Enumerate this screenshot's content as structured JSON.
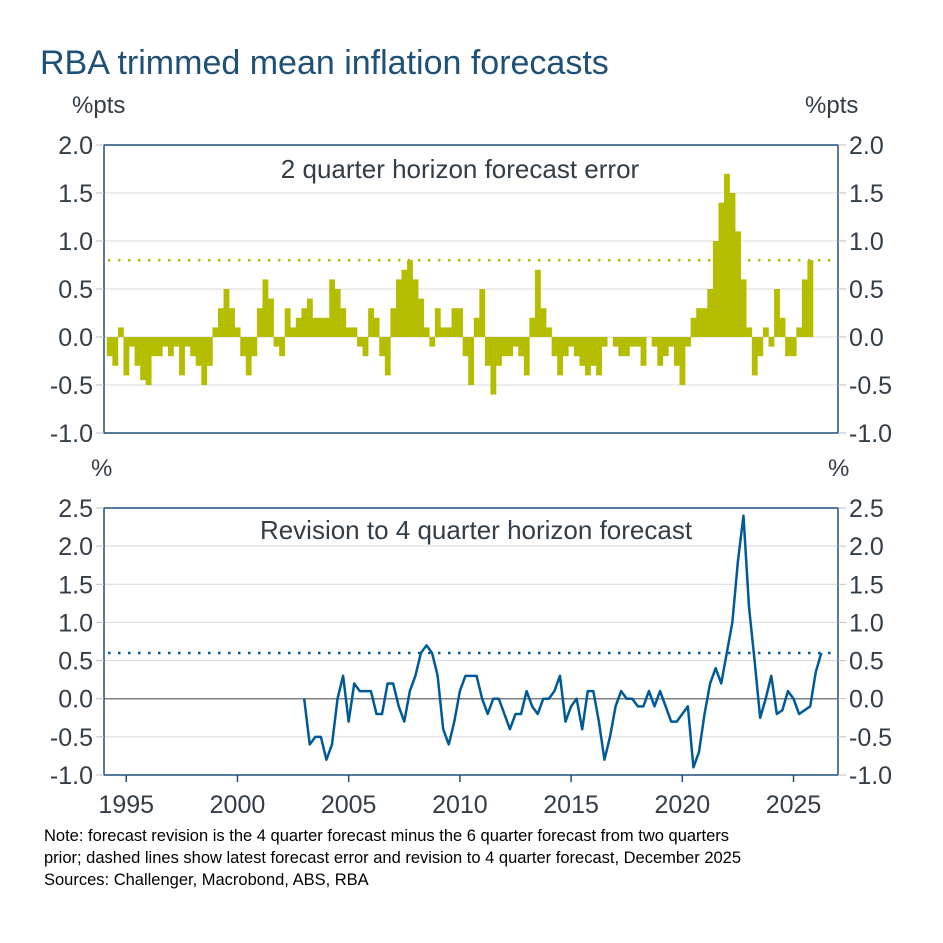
{
  "title": "RBA trimmed mean inflation forecasts",
  "notes": [
    "Note: forecast revision is the 4 quarter forecast minus the 6 quarter forecast from two quarters",
    "prior; dashed lines show latest forecast error and revision to 4 quarter forecast, December 2025",
    "Sources: Challenger, Macrobond, ABS, RBA"
  ],
  "colors": {
    "title": "#1f5078",
    "text": "#333d47",
    "bars": "#b5bd00",
    "line": "#005a96",
    "frame": "#1f4e79",
    "grid": "#d9d9d9",
    "zero": "#808080"
  },
  "chart_data": [
    {
      "type": "bar",
      "title": "2 quarter horizon forecast error",
      "ylabel_left": "%pts",
      "ylabel_right": "%pts",
      "ylim": [
        -1.0,
        2.0
      ],
      "yticks": [
        "2.0",
        "1.5",
        "1.0",
        "0.5",
        "0.0",
        "-0.5",
        "-1.0"
      ],
      "xlim": [
        1994,
        2027
      ],
      "reference_line": {
        "value": 0.8,
        "style": "dotted"
      },
      "x": [
        "1994Q2",
        "1994Q3",
        "1994Q4",
        "1995Q1",
        "1995Q2",
        "1995Q3",
        "1995Q4",
        "1996Q1",
        "1996Q2",
        "1996Q3",
        "1996Q4",
        "1997Q1",
        "1997Q2",
        "1997Q3",
        "1997Q4",
        "1998Q1",
        "1998Q2",
        "1998Q3",
        "1998Q4",
        "1999Q1",
        "1999Q2",
        "1999Q3",
        "1999Q4",
        "2000Q1",
        "2000Q2",
        "2000Q3",
        "2000Q4",
        "2001Q1",
        "2001Q2",
        "2001Q3",
        "2001Q4",
        "2002Q1",
        "2002Q2",
        "2002Q3",
        "2002Q4",
        "2003Q1",
        "2003Q2",
        "2003Q3",
        "2003Q4",
        "2004Q1",
        "2004Q2",
        "2004Q3",
        "2004Q4",
        "2005Q1",
        "2005Q2",
        "2005Q3",
        "2005Q4",
        "2006Q1",
        "2006Q2",
        "2006Q3",
        "2006Q4",
        "2007Q1",
        "2007Q2",
        "2007Q3",
        "2007Q4",
        "2008Q1",
        "2008Q2",
        "2008Q3",
        "2008Q4",
        "2009Q1",
        "2009Q2",
        "2009Q3",
        "2009Q4",
        "2010Q1",
        "2010Q2",
        "2010Q3",
        "2010Q4",
        "2011Q1",
        "2011Q2",
        "2011Q3",
        "2011Q4",
        "2012Q1",
        "2012Q2",
        "2012Q3",
        "2012Q4",
        "2013Q1",
        "2013Q2",
        "2013Q3",
        "2013Q4",
        "2014Q1",
        "2014Q2",
        "2014Q3",
        "2014Q4",
        "2015Q1",
        "2015Q2",
        "2015Q3",
        "2015Q4",
        "2016Q1",
        "2016Q2",
        "2016Q3",
        "2016Q4",
        "2017Q1",
        "2017Q2",
        "2017Q3",
        "2017Q4",
        "2018Q1",
        "2018Q2",
        "2018Q3",
        "2018Q4",
        "2019Q1",
        "2019Q2",
        "2019Q3",
        "2019Q4",
        "2020Q1",
        "2020Q2",
        "2020Q3",
        "2020Q4",
        "2021Q1",
        "2021Q2",
        "2021Q3",
        "2021Q4",
        "2022Q1",
        "2022Q2",
        "2022Q3",
        "2022Q4",
        "2023Q1",
        "2023Q2",
        "2023Q3",
        "2023Q4",
        "2024Q1",
        "2024Q2",
        "2024Q3",
        "2024Q4",
        "2025Q1",
        "2025Q2",
        "2025Q3",
        "2025Q4"
      ],
      "values": [
        -0.2,
        -0.3,
        0.1,
        -0.4,
        -0.1,
        -0.3,
        -0.45,
        -0.5,
        -0.2,
        -0.2,
        -0.1,
        -0.2,
        -0.1,
        -0.4,
        -0.1,
        -0.2,
        -0.3,
        -0.5,
        -0.3,
        0.1,
        0.3,
        0.5,
        0.3,
        0.1,
        -0.2,
        -0.4,
        -0.2,
        0.3,
        0.6,
        0.4,
        -0.1,
        -0.2,
        0.3,
        0.1,
        0.2,
        0.3,
        0.4,
        0.2,
        0.2,
        0.2,
        0.6,
        0.5,
        0.3,
        0.1,
        0.1,
        -0.1,
        -0.2,
        0.3,
        0.2,
        -0.2,
        -0.4,
        0.3,
        0.6,
        0.7,
        0.8,
        0.6,
        0.4,
        0.1,
        -0.1,
        0.3,
        0.1,
        0.1,
        0.3,
        0.3,
        -0.2,
        -0.5,
        0.2,
        0.5,
        -0.3,
        -0.6,
        -0.3,
        -0.2,
        -0.2,
        -0.1,
        -0.2,
        -0.4,
        0.2,
        0.7,
        0.3,
        0.1,
        -0.2,
        -0.4,
        -0.2,
        -0.1,
        -0.2,
        -0.3,
        -0.4,
        -0.3,
        -0.4,
        -0.1,
        0.0,
        -0.1,
        -0.2,
        -0.2,
        -0.1,
        -0.1,
        -0.3,
        0.0,
        -0.1,
        -0.3,
        -0.2,
        -0.1,
        -0.3,
        -0.5,
        -0.1,
        0.2,
        0.3,
        0.3,
        0.5,
        1.0,
        1.4,
        1.7,
        1.5,
        1.1,
        0.6,
        0.1,
        -0.4,
        -0.2,
        0.1,
        -0.1,
        0.5,
        0.2,
        -0.2,
        -0.2,
        0.1,
        0.6,
        0.8
      ]
    },
    {
      "type": "line",
      "title": "Revision to 4 quarter horizon forecast",
      "ylabel_left": "%",
      "ylabel_right": "%",
      "ylim": [
        -1.0,
        2.5
      ],
      "yticks": [
        "2.5",
        "2.0",
        "1.5",
        "1.0",
        "0.5",
        "0.0",
        "-0.5",
        "-1.0"
      ],
      "xlim": [
        1994,
        2027
      ],
      "xticks": [
        "1995",
        "2000",
        "2005",
        "2010",
        "2015",
        "2020",
        "2025"
      ],
      "reference_line": {
        "value": 0.6,
        "style": "dotted"
      },
      "x": [
        "2003Q1",
        "2003Q2",
        "2003Q3",
        "2003Q4",
        "2004Q1",
        "2004Q2",
        "2004Q3",
        "2004Q4",
        "2005Q1",
        "2005Q2",
        "2005Q3",
        "2005Q4",
        "2006Q1",
        "2006Q2",
        "2006Q3",
        "2006Q4",
        "2007Q1",
        "2007Q2",
        "2007Q3",
        "2007Q4",
        "2008Q1",
        "2008Q2",
        "2008Q3",
        "2008Q4",
        "2009Q1",
        "2009Q2",
        "2009Q3",
        "2009Q4",
        "2010Q1",
        "2010Q2",
        "2010Q3",
        "2010Q4",
        "2011Q1",
        "2011Q2",
        "2011Q3",
        "2011Q4",
        "2012Q1",
        "2012Q2",
        "2012Q3",
        "2012Q4",
        "2013Q1",
        "2013Q2",
        "2013Q3",
        "2013Q4",
        "2014Q1",
        "2014Q2",
        "2014Q3",
        "2014Q4",
        "2015Q1",
        "2015Q2",
        "2015Q3",
        "2015Q4",
        "2016Q1",
        "2016Q2",
        "2016Q3",
        "2016Q4",
        "2017Q1",
        "2017Q2",
        "2017Q3",
        "2017Q4",
        "2018Q1",
        "2018Q2",
        "2018Q3",
        "2018Q4",
        "2019Q1",
        "2019Q2",
        "2019Q3",
        "2019Q4",
        "2020Q1",
        "2020Q2",
        "2020Q3",
        "2020Q4",
        "2021Q1",
        "2021Q2",
        "2021Q3",
        "2021Q4",
        "2022Q1",
        "2022Q2",
        "2022Q3",
        "2022Q4",
        "2023Q1",
        "2023Q2",
        "2023Q3",
        "2023Q4",
        "2024Q1",
        "2024Q2",
        "2024Q3",
        "2024Q4",
        "2025Q1",
        "2025Q2",
        "2025Q3",
        "2025Q4",
        "2026Q1",
        "2026Q2"
      ],
      "values": [
        0.0,
        -0.6,
        -0.5,
        -0.5,
        -0.8,
        -0.6,
        0.0,
        0.3,
        -0.3,
        0.2,
        0.1,
        0.1,
        0.1,
        -0.2,
        -0.2,
        0.2,
        0.2,
        -0.1,
        -0.3,
        0.1,
        0.3,
        0.6,
        0.7,
        0.6,
        0.3,
        -0.4,
        -0.6,
        -0.3,
        0.1,
        0.3,
        0.3,
        0.3,
        0.0,
        -0.2,
        0.0,
        0.0,
        -0.2,
        -0.4,
        -0.2,
        -0.2,
        0.1,
        -0.1,
        -0.2,
        0.0,
        0.0,
        0.1,
        0.3,
        -0.3,
        -0.1,
        0.0,
        -0.4,
        0.1,
        0.1,
        -0.3,
        -0.8,
        -0.5,
        -0.1,
        0.1,
        0.0,
        0.0,
        -0.1,
        -0.1,
        0.1,
        -0.1,
        0.1,
        -0.1,
        -0.3,
        -0.3,
        -0.2,
        -0.1,
        -0.9,
        -0.7,
        -0.2,
        0.2,
        0.4,
        0.2,
        0.6,
        1.0,
        1.8,
        2.4,
        1.2,
        0.5,
        -0.25,
        0.0,
        0.3,
        -0.2,
        -0.15,
        0.1,
        0.0,
        -0.2,
        -0.15,
        -0.1,
        0.35,
        0.6
      ]
    }
  ]
}
